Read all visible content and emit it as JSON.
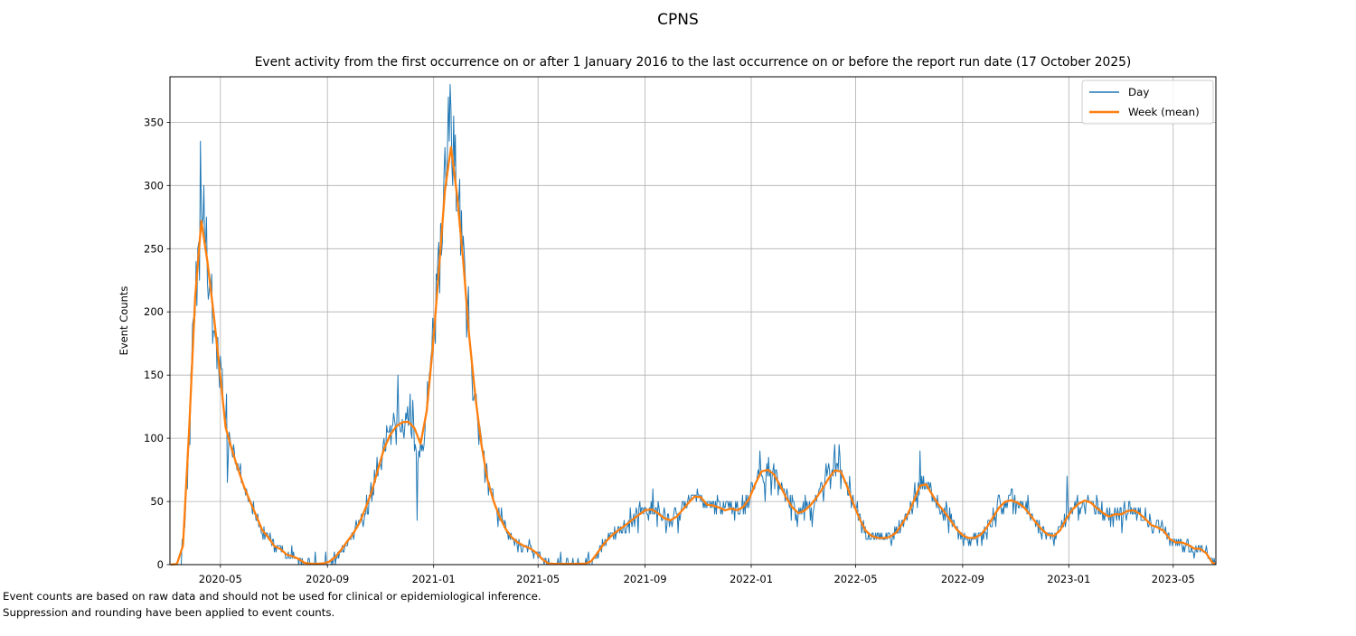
{
  "figure_title": "CPNS",
  "axes_title": "Event activity from the first occurrence on or after 1 January 2016 to the last occurrence on or before the report run date (17 October 2025)",
  "footer": {
    "line1": "Event counts are based on raw data and should not be used for clinical or epidemiological inference.",
    "line2": "Suppression and rounding have been applied to event counts."
  },
  "colors": {
    "day_line": "#1f77b4",
    "week_line": "#ff7f0e",
    "grid": "#b0b0b0",
    "spine": "#000000",
    "legend_border": "#cccccc",
    "text": "#000000"
  },
  "chart_data": {
    "type": "line",
    "title": "CPNS",
    "xlabel": "",
    "ylabel": "Event Counts",
    "grid": true,
    "legend_position": "upper right",
    "ylim": [
      0,
      386
    ],
    "yticks": [
      0,
      50,
      100,
      150,
      200,
      250,
      300,
      350
    ],
    "xticks": [
      "2020-05",
      "2020-09",
      "2021-01",
      "2021-05",
      "2021-09",
      "2022-01",
      "2022-05",
      "2022-09",
      "2023-01",
      "2023-05"
    ],
    "x_range": [
      "2020-03-04",
      "2023-06-19"
    ],
    "data_range": [
      "2020-03-05",
      "2023-06-18"
    ],
    "series": [
      {
        "name": "Day",
        "color": "#1f77b4",
        "description": "daily event counts (rounded to multiples of 5), noisy around weekly mean",
        "outliers": [
          [
            "2020-04-08",
            335
          ],
          [
            "2020-11-21",
            150
          ],
          [
            "2020-12-13",
            35
          ],
          [
            "2021-01-18",
            370
          ],
          [
            "2021-01-21",
            360
          ],
          [
            "2021-09-10",
            60
          ],
          [
            "2022-01-11",
            90
          ],
          [
            "2022-04-07",
            95
          ],
          [
            "2022-04-12",
            95
          ],
          [
            "2022-07-14",
            90
          ],
          [
            "2022-12-30",
            70
          ]
        ]
      },
      {
        "name": "Week (mean)",
        "color": "#ff7f0e",
        "keypoints": [
          [
            "2020-03-05",
            0
          ],
          [
            "2020-03-12",
            0.5
          ],
          [
            "2020-03-16",
            4
          ],
          [
            "2020-03-19",
            15
          ],
          [
            "2020-03-22",
            45
          ],
          [
            "2020-03-25",
            90
          ],
          [
            "2020-03-28",
            140
          ],
          [
            "2020-03-31",
            185
          ],
          [
            "2020-04-03",
            225
          ],
          [
            "2020-04-06",
            255
          ],
          [
            "2020-04-09",
            272
          ],
          [
            "2020-04-12",
            265
          ],
          [
            "2020-04-16",
            240
          ],
          [
            "2020-04-20",
            215
          ],
          [
            "2020-04-24",
            195
          ],
          [
            "2020-04-28",
            170
          ],
          [
            "2020-05-02",
            140
          ],
          [
            "2020-05-06",
            112
          ],
          [
            "2020-05-10",
            98
          ],
          [
            "2020-05-15",
            90
          ],
          [
            "2020-05-20",
            78
          ],
          [
            "2020-05-25",
            68
          ],
          [
            "2020-05-30",
            58
          ],
          [
            "2020-06-04",
            50
          ],
          [
            "2020-06-09",
            43
          ],
          [
            "2020-06-14",
            33
          ],
          [
            "2020-06-19",
            26
          ],
          [
            "2020-06-23",
            22
          ],
          [
            "2020-06-27",
            21
          ],
          [
            "2020-07-01",
            15
          ],
          [
            "2020-07-06",
            13
          ],
          [
            "2020-07-11",
            12
          ],
          [
            "2020-07-16",
            8
          ],
          [
            "2020-07-21",
            7
          ],
          [
            "2020-07-26",
            6
          ],
          [
            "2020-07-31",
            4
          ],
          [
            "2020-08-05",
            1.5
          ],
          [
            "2020-08-12",
            0.7
          ],
          [
            "2020-08-20",
            0.7
          ],
          [
            "2020-08-28",
            1
          ],
          [
            "2020-09-04",
            2.5
          ],
          [
            "2020-09-10",
            6
          ],
          [
            "2020-09-16",
            11
          ],
          [
            "2020-09-22",
            17
          ],
          [
            "2020-09-28",
            22
          ],
          [
            "2020-10-04",
            28
          ],
          [
            "2020-10-10",
            36
          ],
          [
            "2020-10-16",
            47
          ],
          [
            "2020-10-22",
            58
          ],
          [
            "2020-10-28",
            73
          ],
          [
            "2020-11-03",
            88
          ],
          [
            "2020-11-09",
            99
          ],
          [
            "2020-11-15",
            106
          ],
          [
            "2020-11-21",
            111
          ],
          [
            "2020-11-27",
            113
          ],
          [
            "2020-12-02",
            112
          ],
          [
            "2020-12-06",
            116
          ],
          [
            "2020-12-10",
            108
          ],
          [
            "2020-12-14",
            91
          ],
          [
            "2020-12-18",
            97
          ],
          [
            "2020-12-22",
            110
          ],
          [
            "2020-12-26",
            133
          ],
          [
            "2020-12-30",
            163
          ],
          [
            "2021-01-03",
            197
          ],
          [
            "2021-01-07",
            232
          ],
          [
            "2021-01-11",
            270
          ],
          [
            "2021-01-15",
            305
          ],
          [
            "2021-01-18",
            327
          ],
          [
            "2021-01-20",
            334
          ],
          [
            "2021-01-23",
            323
          ],
          [
            "2021-01-27",
            299
          ],
          [
            "2021-01-31",
            272
          ],
          [
            "2021-02-04",
            240
          ],
          [
            "2021-02-08",
            205
          ],
          [
            "2021-02-12",
            172
          ],
          [
            "2021-02-16",
            145
          ],
          [
            "2021-02-20",
            120
          ],
          [
            "2021-02-24",
            99
          ],
          [
            "2021-02-28",
            82
          ],
          [
            "2021-03-04",
            67
          ],
          [
            "2021-03-09",
            54
          ],
          [
            "2021-03-14",
            44
          ],
          [
            "2021-03-19",
            36
          ],
          [
            "2021-03-25",
            28
          ],
          [
            "2021-03-31",
            22
          ],
          [
            "2021-04-06",
            18.5
          ],
          [
            "2021-04-13",
            15
          ],
          [
            "2021-04-20",
            14
          ],
          [
            "2021-04-27",
            10
          ],
          [
            "2021-05-03",
            8
          ],
          [
            "2021-05-07",
            3
          ],
          [
            "2021-05-11",
            1
          ],
          [
            "2021-05-18",
            0.6
          ],
          [
            "2021-06-10",
            0.6
          ],
          [
            "2021-06-26",
            0.8
          ],
          [
            "2021-07-02",
            3
          ],
          [
            "2021-07-08",
            9
          ],
          [
            "2021-07-14",
            15
          ],
          [
            "2021-07-20",
            20
          ],
          [
            "2021-07-26",
            24
          ],
          [
            "2021-08-01",
            27
          ],
          [
            "2021-08-08",
            30.5
          ],
          [
            "2021-08-15",
            34
          ],
          [
            "2021-08-22",
            38
          ],
          [
            "2021-08-29",
            41.5
          ],
          [
            "2021-09-05",
            44.5
          ],
          [
            "2021-09-10",
            43.5
          ],
          [
            "2021-09-15",
            41
          ],
          [
            "2021-09-21",
            38
          ],
          [
            "2021-09-27",
            34.5
          ],
          [
            "2021-10-03",
            35.5
          ],
          [
            "2021-10-09",
            39
          ],
          [
            "2021-10-15",
            44
          ],
          [
            "2021-10-21",
            49
          ],
          [
            "2021-10-27",
            53.5
          ],
          [
            "2021-11-01",
            55.5
          ],
          [
            "2021-11-06",
            52
          ],
          [
            "2021-11-11",
            47.5
          ],
          [
            "2021-11-16",
            46
          ],
          [
            "2021-11-21",
            48
          ],
          [
            "2021-11-26",
            44.5
          ],
          [
            "2021-12-01",
            42.5
          ],
          [
            "2021-12-06",
            45
          ],
          [
            "2021-12-11",
            44
          ],
          [
            "2021-12-16",
            43
          ],
          [
            "2021-12-21",
            44.5
          ],
          [
            "2021-12-26",
            47.5
          ],
          [
            "2021-12-31",
            54
          ],
          [
            "2022-01-05",
            63
          ],
          [
            "2022-01-10",
            70.5
          ],
          [
            "2022-01-14",
            75
          ],
          [
            "2022-01-18",
            76
          ],
          [
            "2022-01-22",
            74
          ],
          [
            "2022-01-27",
            71.5
          ],
          [
            "2022-02-01",
            66
          ],
          [
            "2022-02-06",
            58
          ],
          [
            "2022-02-11",
            52
          ],
          [
            "2022-02-16",
            46.5
          ],
          [
            "2022-02-21",
            42
          ],
          [
            "2022-02-26",
            40
          ],
          [
            "2022-03-03",
            42.5
          ],
          [
            "2022-03-08",
            45.5
          ],
          [
            "2022-03-13",
            49
          ],
          [
            "2022-03-18",
            54
          ],
          [
            "2022-03-23",
            59
          ],
          [
            "2022-03-28",
            65
          ],
          [
            "2022-04-02",
            70.5
          ],
          [
            "2022-04-07",
            74.5
          ],
          [
            "2022-04-11",
            76
          ],
          [
            "2022-04-15",
            73
          ],
          [
            "2022-04-19",
            66.5
          ],
          [
            "2022-04-23",
            58
          ],
          [
            "2022-04-27",
            50.5
          ],
          [
            "2022-05-01",
            44
          ],
          [
            "2022-05-06",
            35.5
          ],
          [
            "2022-05-11",
            28
          ],
          [
            "2022-05-16",
            24
          ],
          [
            "2022-05-21",
            22
          ],
          [
            "2022-05-27",
            21
          ],
          [
            "2022-06-03",
            21
          ],
          [
            "2022-06-10",
            22
          ],
          [
            "2022-06-16",
            25
          ],
          [
            "2022-06-22",
            30.5
          ],
          [
            "2022-06-28",
            37.5
          ],
          [
            "2022-07-04",
            45.5
          ],
          [
            "2022-07-09",
            54
          ],
          [
            "2022-07-14",
            62.5
          ],
          [
            "2022-07-18",
            66.5
          ],
          [
            "2022-07-22",
            62.5
          ],
          [
            "2022-07-27",
            56.5
          ],
          [
            "2022-08-01",
            50.5
          ],
          [
            "2022-08-07",
            45
          ],
          [
            "2022-08-13",
            40
          ],
          [
            "2022-08-19",
            34
          ],
          [
            "2022-08-25",
            28
          ],
          [
            "2022-08-31",
            23.5
          ],
          [
            "2022-09-07",
            21
          ],
          [
            "2022-09-14",
            21
          ],
          [
            "2022-09-21",
            23
          ],
          [
            "2022-09-28",
            28.5
          ],
          [
            "2022-10-05",
            36.5
          ],
          [
            "2022-10-12",
            44.5
          ],
          [
            "2022-10-19",
            49.5
          ],
          [
            "2022-10-25",
            51.5
          ],
          [
            "2022-10-31",
            50
          ],
          [
            "2022-11-06",
            48
          ],
          [
            "2022-11-12",
            44.5
          ],
          [
            "2022-11-18",
            39
          ],
          [
            "2022-11-24",
            33.5
          ],
          [
            "2022-11-30",
            28.5
          ],
          [
            "2022-12-06",
            24.5
          ],
          [
            "2022-12-12",
            22
          ],
          [
            "2022-12-18",
            23.5
          ],
          [
            "2022-12-24",
            29
          ],
          [
            "2022-12-30",
            37.5
          ],
          [
            "2023-01-05",
            43.5
          ],
          [
            "2023-01-11",
            47.5
          ],
          [
            "2023-01-17",
            50.5
          ],
          [
            "2023-01-23",
            51
          ],
          [
            "2023-01-29",
            47.5
          ],
          [
            "2023-02-04",
            43.5
          ],
          [
            "2023-02-10",
            40.5
          ],
          [
            "2023-02-16",
            38
          ],
          [
            "2023-02-22",
            40
          ],
          [
            "2023-02-28",
            39
          ],
          [
            "2023-03-06",
            41.5
          ],
          [
            "2023-03-12",
            43
          ],
          [
            "2023-03-18",
            43
          ],
          [
            "2023-03-24",
            40
          ],
          [
            "2023-03-30",
            36
          ],
          [
            "2023-04-05",
            31.5
          ],
          [
            "2023-04-11",
            30
          ],
          [
            "2023-04-17",
            28.5
          ],
          [
            "2023-04-23",
            25
          ],
          [
            "2023-04-28",
            19
          ],
          [
            "2023-05-04",
            17.5
          ],
          [
            "2023-05-10",
            17.5
          ],
          [
            "2023-05-16",
            17.5
          ],
          [
            "2023-05-21",
            13
          ],
          [
            "2023-05-28",
            12.5
          ],
          [
            "2023-06-04",
            12.5
          ],
          [
            "2023-06-09",
            8
          ],
          [
            "2023-06-12",
            3
          ],
          [
            "2023-06-15",
            1.5
          ],
          [
            "2023-06-18",
            1
          ]
        ]
      }
    ]
  }
}
